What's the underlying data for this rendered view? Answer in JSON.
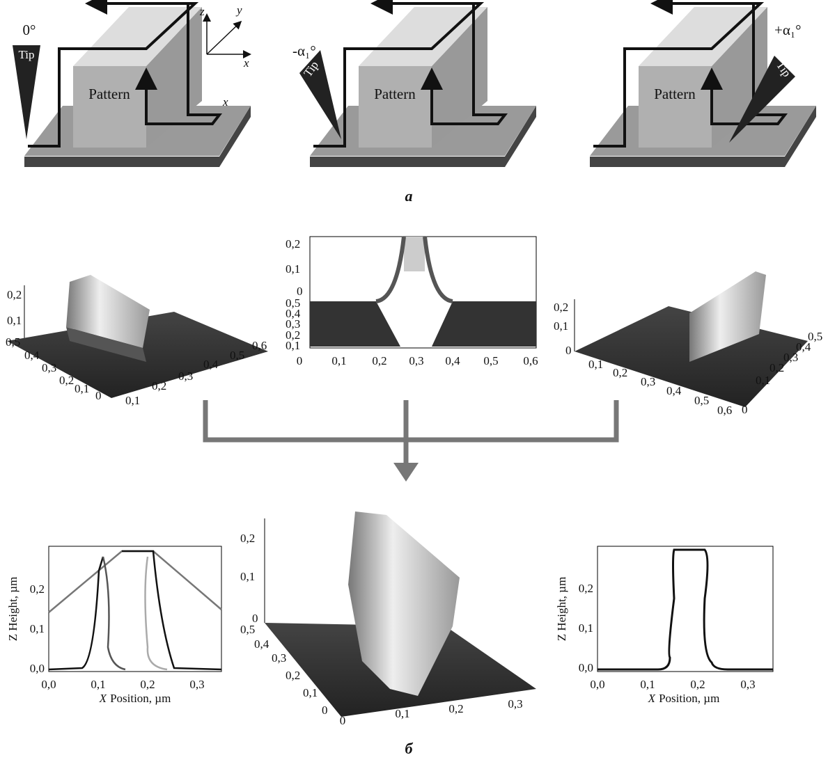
{
  "panel_a": {
    "label": "а",
    "diagrams": [
      {
        "angle": "0°",
        "tip": "Tip",
        "pattern": "Pattern",
        "axis_z": "z",
        "axis_y": "y",
        "axis_x": "x",
        "scan_x": "x"
      },
      {
        "angle": "-α₁°",
        "tip": "Tip",
        "pattern": "Pattern"
      },
      {
        "angle": "+α₁°",
        "tip": "Tip",
        "pattern": "Pattern"
      }
    ]
  },
  "panel_b": {
    "label": "б",
    "surfaces_top": [
      {
        "z_ticks": [
          "0,2",
          "0,1"
        ],
        "y_ticks": [
          "0,5",
          "0,4",
          "0,3",
          "0,2",
          "0,1",
          "0"
        ],
        "x_ticks": [
          "0,1",
          "0,2",
          "0,3",
          "0,4",
          "0,5",
          "0,6"
        ]
      },
      {
        "z_ticks": [
          "0,2",
          "0,1",
          "0"
        ],
        "y_ticks": [
          "0,5",
          "0,4",
          "0,3",
          "0,2",
          "0,1"
        ],
        "x_ticks": [
          "0",
          "0,1",
          "0,2",
          "0,3",
          "0,4",
          "0,5",
          "0,6"
        ]
      },
      {
        "z_ticks": [
          "0,2",
          "0,1",
          "0"
        ],
        "x_ticks": [
          "0,1",
          "0,2",
          "0,3",
          "0,4",
          "0,5",
          "0,6"
        ],
        "y_ticks": [
          "0,5",
          "0,4",
          "0,3",
          "0,2",
          "0,1",
          "0"
        ]
      }
    ],
    "surface_result": {
      "z_ticks": [
        "0,2",
        "0,1",
        "0"
      ],
      "y_ticks": [
        "0,5",
        "0,4",
        "0,3",
        "0,2",
        "0,1",
        "0"
      ],
      "x_ticks": [
        "0",
        "0,1",
        "0,2",
        "0,3"
      ]
    },
    "profiles": [
      {
        "y_label": "Z Height, µm",
        "x_label_var": "X",
        "x_label_rest": "Position, µm",
        "y_ticks": [
          "0,0",
          "0,1",
          "0,2"
        ],
        "x_ticks": [
          "0,0",
          "0,1",
          "0,2",
          "0,3"
        ]
      },
      {
        "y_label": "Z Height, µm",
        "x_label_var": "X",
        "x_label_rest": "Position, µm",
        "y_ticks": [
          "0,0",
          "0,1",
          "0,2"
        ],
        "x_ticks": [
          "0,0",
          "0,1",
          "0,2",
          "0,3"
        ]
      }
    ]
  }
}
